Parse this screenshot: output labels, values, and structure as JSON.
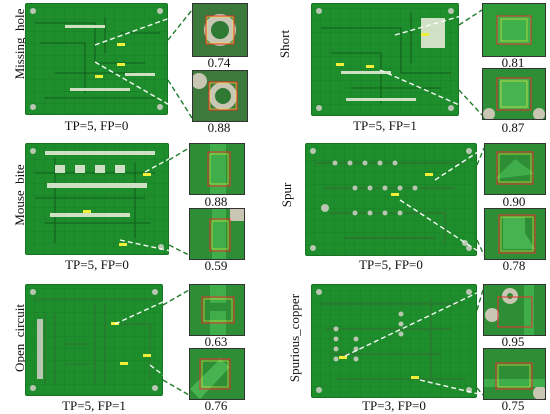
{
  "panels": [
    {
      "id": "missing-hole",
      "label": "Missing_hole",
      "metric": "TP=5, FP=0",
      "scores": [
        "0.74",
        "0.88"
      ]
    },
    {
      "id": "short",
      "label": "Short",
      "metric": "TP=5, FP=1",
      "scores": [
        "0.81",
        "0.87"
      ]
    },
    {
      "id": "mouse-bite",
      "label": "Mouse_bite",
      "metric": "TP=5, FP=0",
      "scores": [
        "0.88",
        "0.59"
      ]
    },
    {
      "id": "spur",
      "label": "Spur",
      "metric": "TP=5, FP=0",
      "scores": [
        "0.90",
        "0.78"
      ]
    },
    {
      "id": "open-circuit",
      "label": "Open_circuit",
      "metric": "TP=5, FP=1",
      "scores": [
        "0.63",
        "0.76"
      ]
    },
    {
      "id": "spurious-copper",
      "label": "Spurious_copper",
      "metric": "TP=3, FP=0",
      "scores": [
        "0.95",
        "0.75"
      ]
    }
  ]
}
